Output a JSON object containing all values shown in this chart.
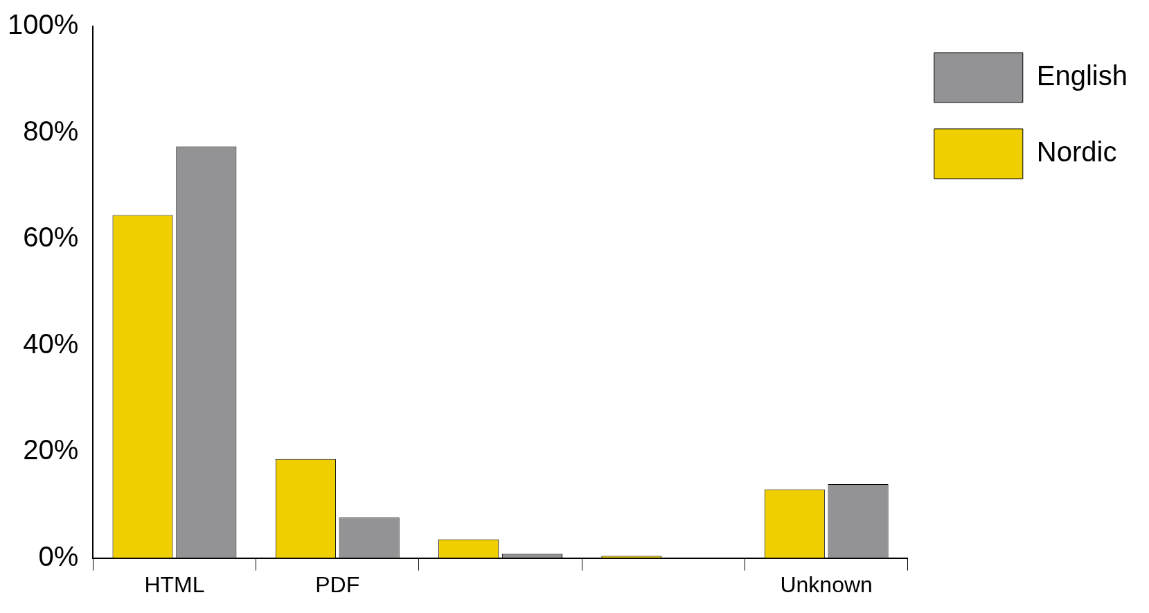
{
  "chart_data": {
    "type": "bar",
    "categories": [
      "HTML",
      "PDF",
      null,
      null,
      "Unknown"
    ],
    "series": [
      {
        "name": "Nordic",
        "color": "#f0cf00",
        "values": [
          64.5,
          18.6,
          3.5,
          0.4,
          12.9
        ]
      },
      {
        "name": "English",
        "color": "#939396",
        "values": [
          77.4,
          7.6,
          0.8,
          null,
          13.9
        ]
      }
    ],
    "ylim": [
      0,
      100
    ],
    "yticks": [
      {
        "value": 0,
        "label": "0%"
      },
      {
        "value": 20,
        "label": "20%"
      },
      {
        "value": 40,
        "label": "40%"
      },
      {
        "value": 60,
        "label": "60%"
      },
      {
        "value": 80,
        "label": "80%"
      },
      {
        "value": 100,
        "label": "100%"
      }
    ],
    "grid": false,
    "legend": "top right"
  }
}
